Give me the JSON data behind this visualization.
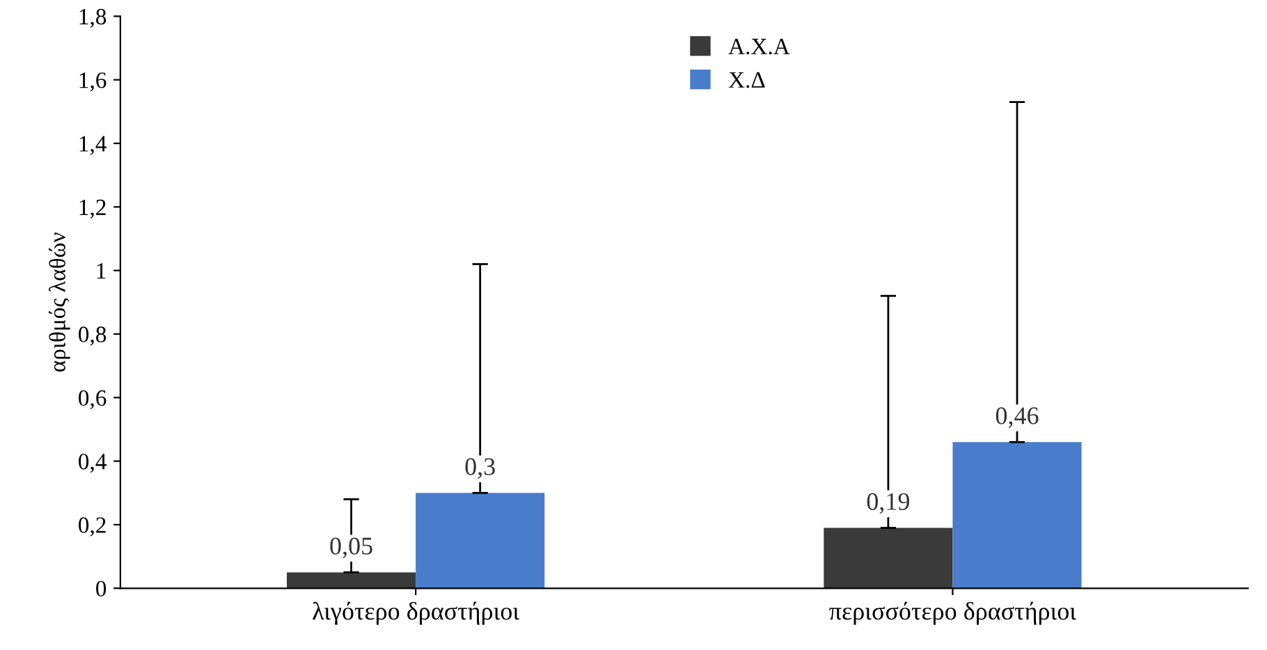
{
  "chart_data": {
    "type": "bar",
    "ylabel": "αριθμός λαθών",
    "categories": [
      "λιγότερο δραστήριοι",
      "περισσότερο δραστήριοι"
    ],
    "series": [
      {
        "name": "Α.Χ.Α",
        "color": "#3a3a3a",
        "values": [
          0.05,
          0.19
        ],
        "errors": [
          [
            0.05,
            0.28
          ],
          [
            0.19,
            0.92
          ]
        ],
        "value_labels": [
          "0,05",
          "0,19"
        ]
      },
      {
        "name": "Χ.Δ",
        "color": "#4a7ccc",
        "values": [
          0.3,
          0.46
        ],
        "errors": [
          [
            0.3,
            1.02
          ],
          [
            0.46,
            1.53
          ]
        ],
        "value_labels": [
          "0,3",
          "0,46"
        ]
      }
    ],
    "ylim": [
      0,
      1.8
    ],
    "yticks": [
      0,
      {
        "value": 0.2,
        "label": "0,2"
      },
      {
        "value": 0.4,
        "label": "0,4"
      },
      {
        "value": 0.6,
        "label": "0,6"
      },
      {
        "value": 0.8,
        "label": "0,8"
      },
      1,
      {
        "value": 1.2,
        "label": "1,2"
      },
      {
        "value": 1.4,
        "label": "1,4"
      },
      {
        "value": 1.6,
        "label": "1,6"
      },
      {
        "value": 1.8,
        "label": "1,8"
      }
    ],
    "grid": false,
    "legend": "top"
  }
}
